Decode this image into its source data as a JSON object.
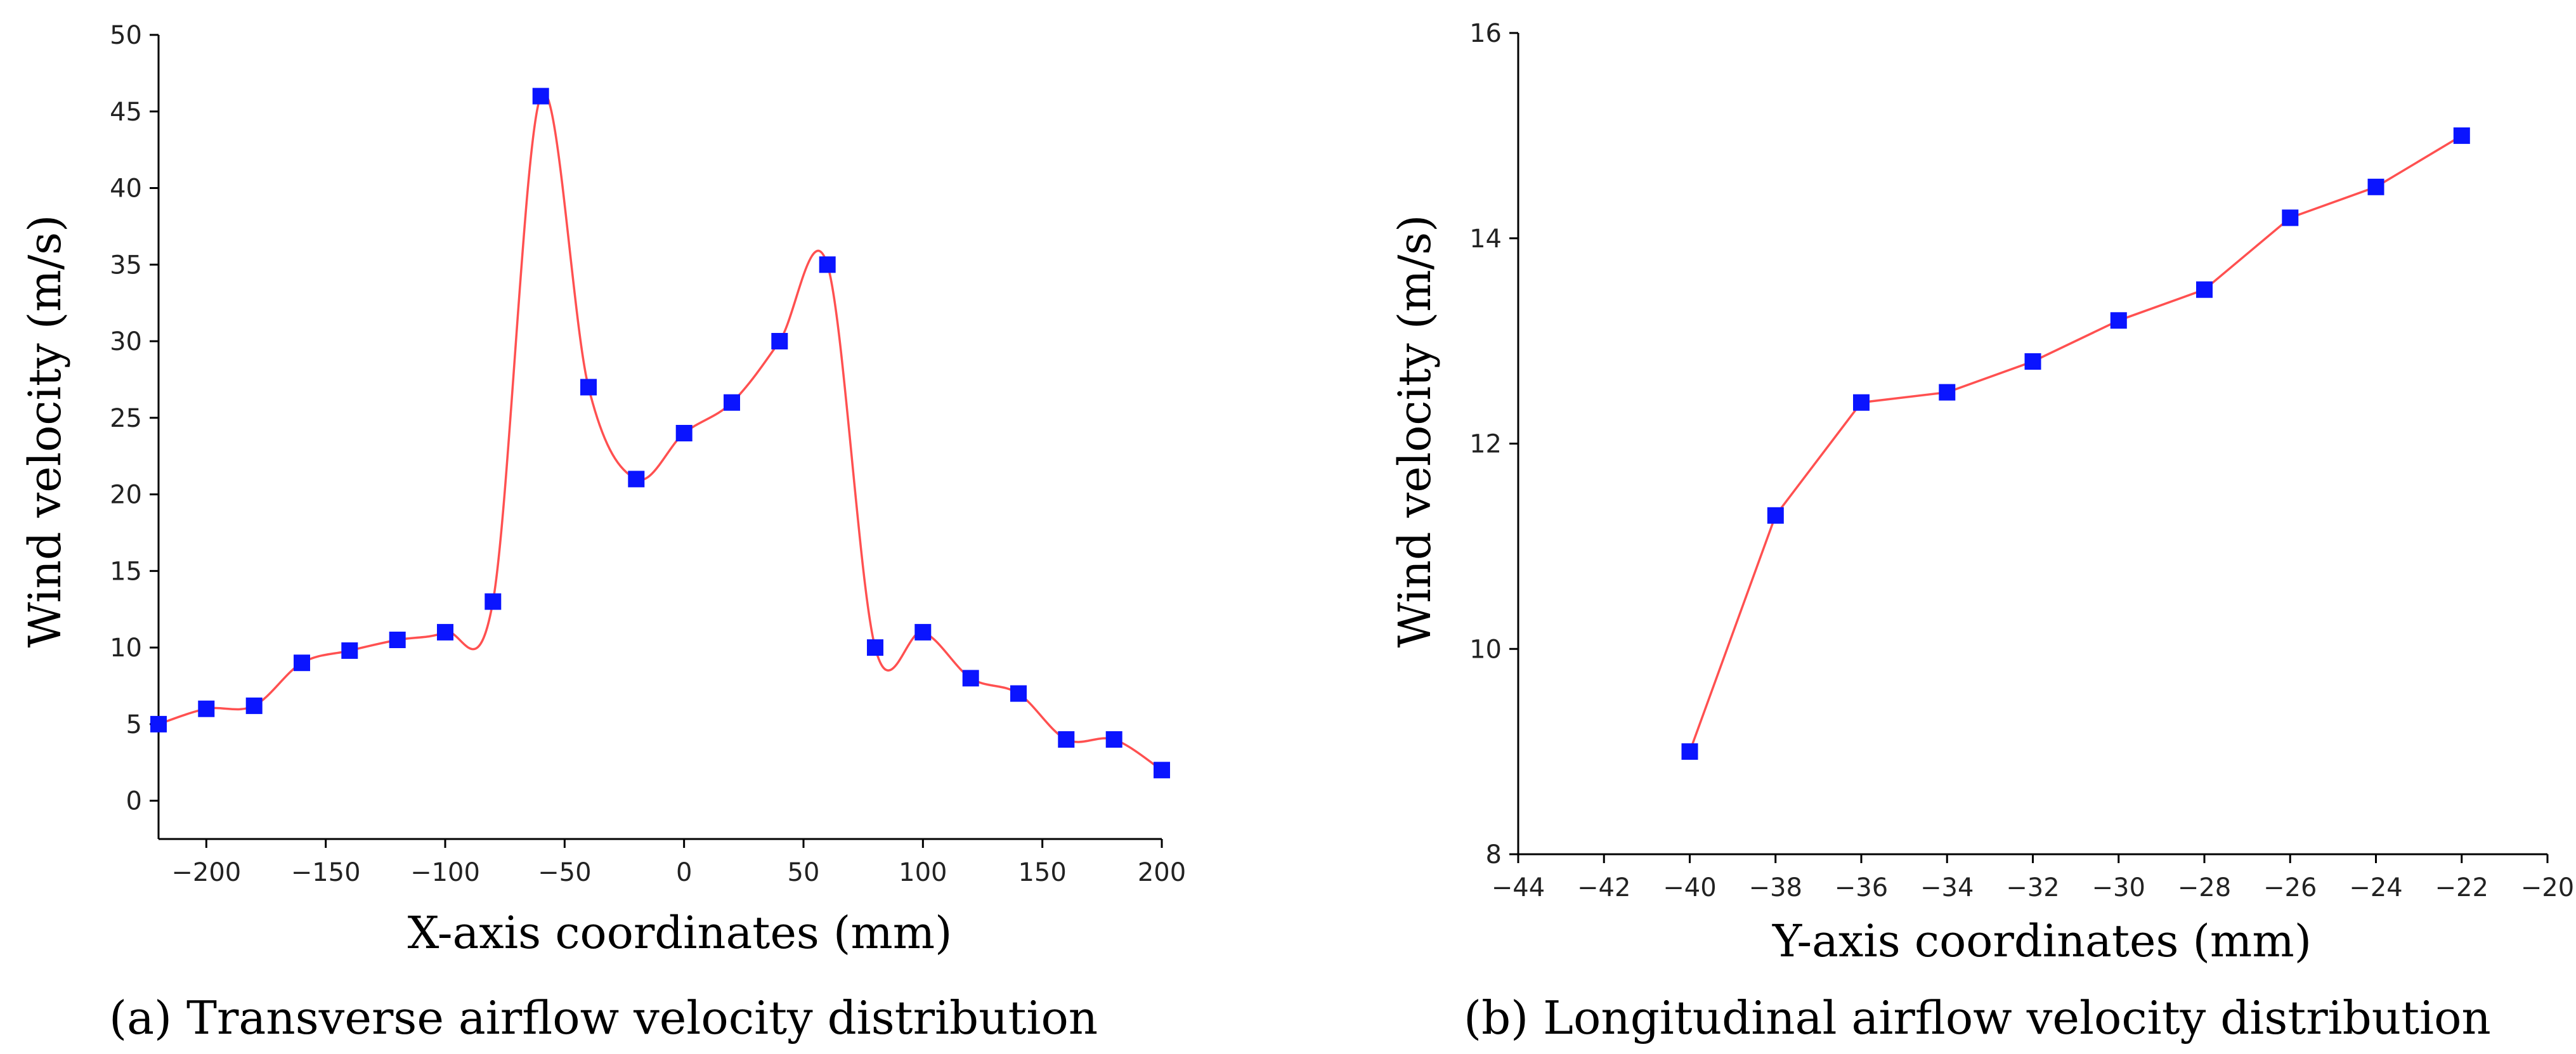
{
  "chart_data": [
    {
      "type": "line",
      "title": "",
      "caption": "(a) Transverse airflow velocity distribution",
      "xlabel": "X-axis coordinates (mm)",
      "ylabel": "Wind velocity (m/s)",
      "xlim": [
        -220,
        200
      ],
      "ylim": [
        -2.5,
        50
      ],
      "xticks": [
        -200,
        -150,
        -100,
        -50,
        0,
        50,
        100,
        150,
        200
      ],
      "yticks": [
        0,
        5,
        10,
        15,
        20,
        25,
        30,
        35,
        40,
        45,
        50
      ],
      "smooth": true,
      "series": [
        {
          "name": "Wind velocity",
          "x": [
            -220,
            -200,
            -180,
            -160,
            -140,
            -120,
            -100,
            -80,
            -60,
            -40,
            -20,
            0,
            20,
            40,
            60,
            80,
            100,
            120,
            140,
            160,
            180,
            200
          ],
          "y": [
            5,
            6,
            6.2,
            9,
            9.8,
            10.5,
            11,
            13,
            46,
            27,
            21,
            24,
            26,
            30,
            35,
            10,
            11,
            8,
            7,
            4,
            4,
            2
          ]
        }
      ],
      "colors": {
        "line": "#ff5050",
        "marker": "#0a14ff"
      }
    },
    {
      "type": "line",
      "title": "",
      "caption": "(b) Longitudinal airflow velocity distribution",
      "xlabel": "Y-axis coordinates (mm)",
      "ylabel": "Wind velocity (m/s)",
      "xlim": [
        -44,
        -20
      ],
      "ylim": [
        8,
        16
      ],
      "xticks": [
        -44,
        -42,
        -40,
        -38,
        -36,
        -34,
        -32,
        -30,
        -28,
        -26,
        -24,
        -22,
        -20
      ],
      "yticks": [
        8,
        10,
        12,
        14,
        16
      ],
      "smooth": false,
      "series": [
        {
          "name": "Wind velocity",
          "x": [
            -40,
            -38,
            -36,
            -34,
            -32,
            -30,
            -28,
            -26,
            -24,
            -22
          ],
          "y": [
            9,
            11.3,
            12.4,
            12.5,
            12.8,
            13.2,
            13.5,
            14.2,
            14.5,
            15
          ]
        }
      ],
      "colors": {
        "line": "#ff5050",
        "marker": "#0a14ff"
      }
    }
  ]
}
